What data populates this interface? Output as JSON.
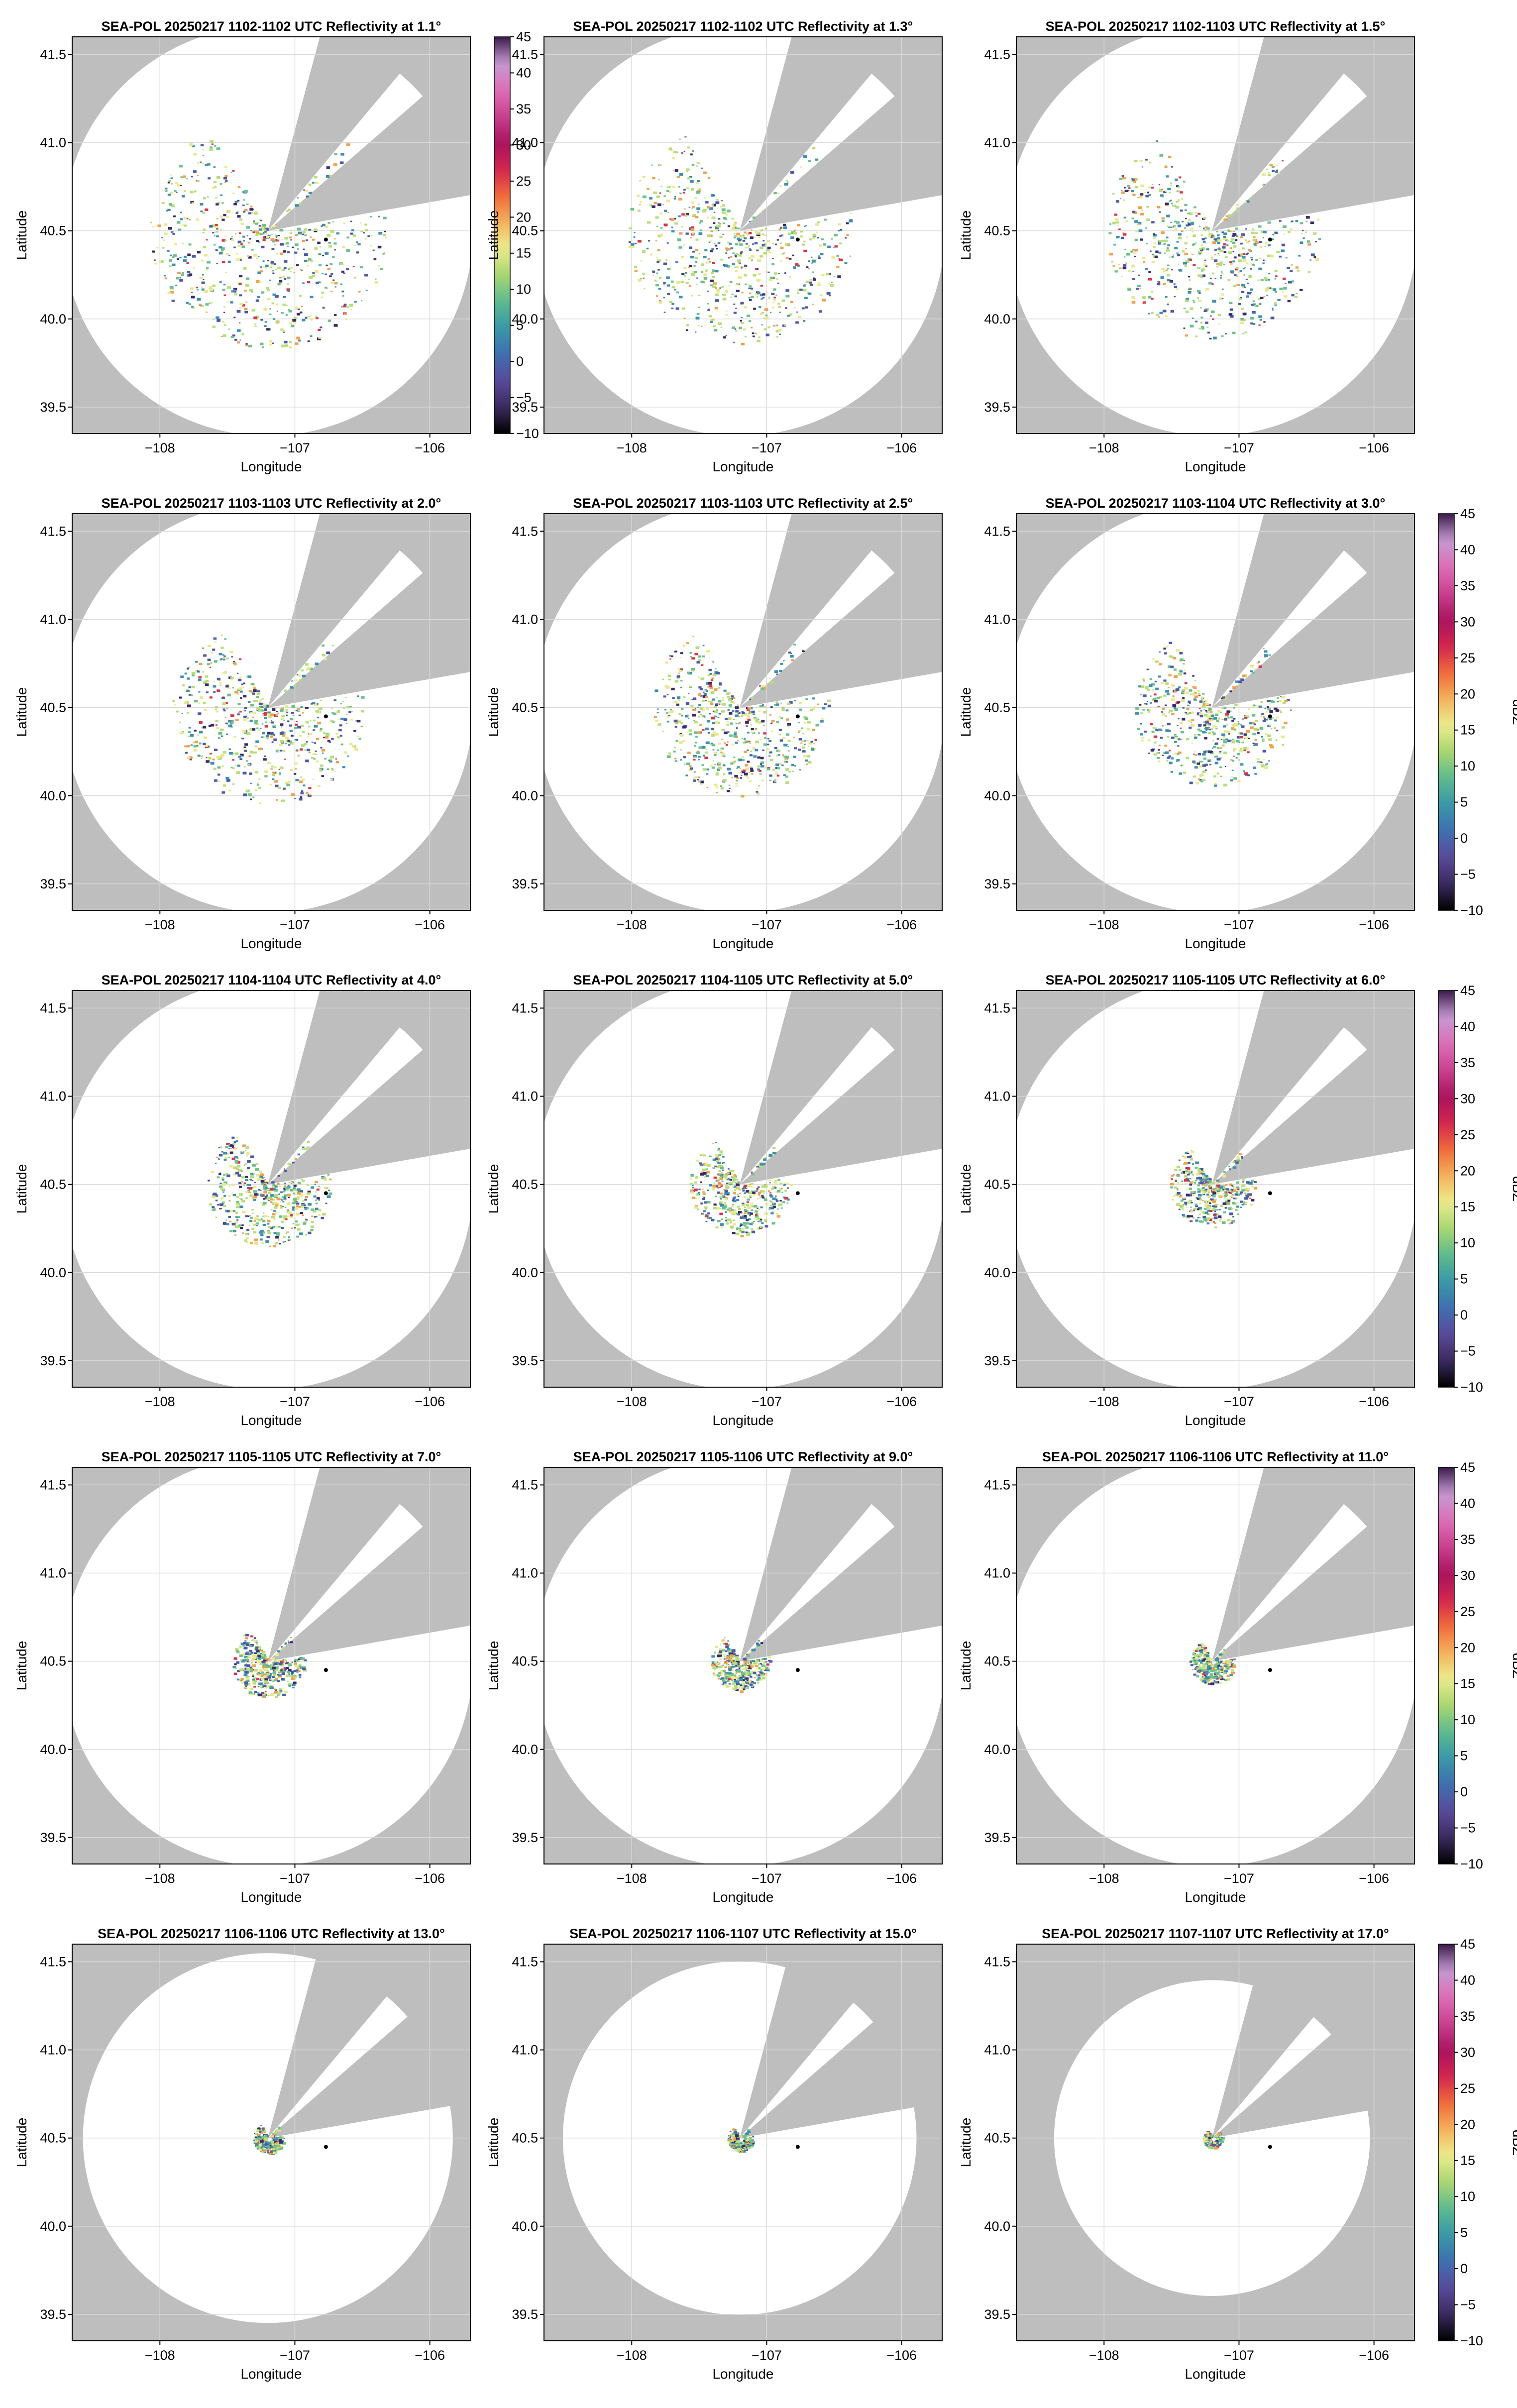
{
  "figure": {
    "colorbar_label": "dBZ",
    "colorbar_ticks": [
      -10,
      -5,
      0,
      5,
      10,
      15,
      20,
      25,
      30,
      35,
      40,
      45
    ],
    "colormap": [
      "#000000",
      "#3b2a5e",
      "#5a4a9a",
      "#3f6fb0",
      "#3a98a8",
      "#5dba8e",
      "#a9d672",
      "#ecec8f",
      "#f4b15a",
      "#ef6a3c",
      "#d2254f",
      "#a8135f",
      "#c9418f",
      "#dd6fb7",
      "#c59ad2",
      "#3a1a4a"
    ]
  },
  "chart_data": [
    {
      "type": "heatmap",
      "title": "SEA-POL 20250217 1102-1102 UTC Reflectivity at 1.1°",
      "elevation_deg": 1.1,
      "xlabel": "Longitude",
      "ylabel": "Latitude",
      "xlim": [
        -108.65,
        -105.7
      ],
      "ylim": [
        39.35,
        41.6
      ],
      "xticks": [
        -108,
        -107,
        -106
      ],
      "yticks": [
        39.5,
        40.0,
        40.5,
        41.0,
        41.5
      ],
      "range_deg_lon": 1.52,
      "echo_extent": 1.05,
      "colorbar": true
    },
    {
      "type": "heatmap",
      "title": "SEA-POL 20250217 1102-1102 UTC Reflectivity at 1.3°",
      "elevation_deg": 1.3,
      "xlabel": "Longitude",
      "ylabel": "Latitude",
      "xlim": [
        -108.65,
        -105.7
      ],
      "ylim": [
        39.35,
        41.6
      ],
      "xticks": [
        -108,
        -107,
        -106
      ],
      "yticks": [
        39.5,
        40.0,
        40.5,
        41.0,
        41.5
      ],
      "range_deg_lon": 1.52,
      "echo_extent": 1.0,
      "colorbar": false
    },
    {
      "type": "heatmap",
      "title": "SEA-POL 20250217 1102-1103 UTC Reflectivity at 1.5°",
      "elevation_deg": 1.5,
      "xlabel": "Longitude",
      "ylabel": "Latitude",
      "xlim": [
        -108.65,
        -105.7
      ],
      "ylim": [
        39.35,
        41.6
      ],
      "xticks": [
        -108,
        -107,
        -106
      ],
      "yticks": [
        39.5,
        40.0,
        40.5,
        41.0,
        41.5
      ],
      "range_deg_lon": 1.52,
      "echo_extent": 0.95,
      "colorbar": false
    },
    {
      "type": "heatmap",
      "title": "SEA-POL 20250217 1103-1103 UTC Reflectivity at 2.0°",
      "elevation_deg": 2.0,
      "xlabel": "Longitude",
      "ylabel": "Latitude",
      "xlim": [
        -108.65,
        -105.7
      ],
      "ylim": [
        39.35,
        41.6
      ],
      "xticks": [
        -108,
        -107,
        -106
      ],
      "yticks": [
        39.5,
        40.0,
        40.5,
        41.0,
        41.5
      ],
      "range_deg_lon": 1.52,
      "echo_extent": 0.85,
      "colorbar": false
    },
    {
      "type": "heatmap",
      "title": "SEA-POL 20250217 1103-1103 UTC Reflectivity at 2.5°",
      "elevation_deg": 2.5,
      "xlabel": "Longitude",
      "ylabel": "Latitude",
      "xlim": [
        -108.65,
        -105.7
      ],
      "ylim": [
        39.35,
        41.6
      ],
      "xticks": [
        -108,
        -107,
        -106
      ],
      "yticks": [
        39.5,
        40.0,
        40.5,
        41.0,
        41.5
      ],
      "range_deg_lon": 1.52,
      "echo_extent": 0.78,
      "colorbar": false
    },
    {
      "type": "heatmap",
      "title": "SEA-POL 20250217 1103-1104 UTC Reflectivity at 3.0°",
      "elevation_deg": 3.0,
      "xlabel": "Longitude",
      "ylabel": "Latitude",
      "xlim": [
        -108.65,
        -105.7
      ],
      "ylim": [
        39.35,
        41.6
      ],
      "xticks": [
        -108,
        -107,
        -106
      ],
      "yticks": [
        39.5,
        40.0,
        40.5,
        41.0,
        41.5
      ],
      "range_deg_lon": 1.52,
      "echo_extent": 0.7,
      "colorbar": true
    },
    {
      "type": "heatmap",
      "title": "SEA-POL 20250217 1104-1104 UTC Reflectivity at 4.0°",
      "elevation_deg": 4.0,
      "xlabel": "Longitude",
      "ylabel": "Latitude",
      "xlim": [
        -108.65,
        -105.7
      ],
      "ylim": [
        39.35,
        41.6
      ],
      "xticks": [
        -108,
        -107,
        -106
      ],
      "yticks": [
        39.5,
        40.0,
        40.5,
        41.0,
        41.5
      ],
      "range_deg_lon": 1.52,
      "echo_extent": 0.55,
      "colorbar": false
    },
    {
      "type": "heatmap",
      "title": "SEA-POL 20250217 1104-1105 UTC Reflectivity at 5.0°",
      "elevation_deg": 5.0,
      "xlabel": "Longitude",
      "ylabel": "Latitude",
      "xlim": [
        -108.65,
        -105.7
      ],
      "ylim": [
        39.35,
        41.6
      ],
      "xticks": [
        -108,
        -107,
        -106
      ],
      "yticks": [
        39.5,
        40.0,
        40.5,
        41.0,
        41.5
      ],
      "range_deg_lon": 1.52,
      "echo_extent": 0.45,
      "colorbar": false
    },
    {
      "type": "heatmap",
      "title": "SEA-POL 20250217 1105-1105 UTC Reflectivity at 6.0°",
      "elevation_deg": 6.0,
      "xlabel": "Longitude",
      "ylabel": "Latitude",
      "xlim": [
        -108.65,
        -105.7
      ],
      "ylim": [
        39.35,
        41.6
      ],
      "xticks": [
        -108,
        -107,
        -106
      ],
      "yticks": [
        39.5,
        40.0,
        40.5,
        41.0,
        41.5
      ],
      "range_deg_lon": 1.52,
      "echo_extent": 0.38,
      "colorbar": true
    },
    {
      "type": "heatmap",
      "title": "SEA-POL 20250217 1105-1105 UTC Reflectivity at 7.0°",
      "elevation_deg": 7.0,
      "xlabel": "Longitude",
      "ylabel": "Latitude",
      "xlim": [
        -108.65,
        -105.7
      ],
      "ylim": [
        39.35,
        41.6
      ],
      "xticks": [
        -108,
        -107,
        -106
      ],
      "yticks": [
        39.5,
        40.0,
        40.5,
        41.0,
        41.5
      ],
      "range_deg_lon": 1.52,
      "echo_extent": 0.32,
      "colorbar": false
    },
    {
      "type": "heatmap",
      "title": "SEA-POL 20250217 1105-1106 UTC Reflectivity at 9.0°",
      "elevation_deg": 9.0,
      "xlabel": "Longitude",
      "ylabel": "Latitude",
      "xlim": [
        -108.65,
        -105.7
      ],
      "ylim": [
        39.35,
        41.6
      ],
      "xticks": [
        -108,
        -107,
        -106
      ],
      "yticks": [
        39.5,
        40.0,
        40.5,
        41.0,
        41.5
      ],
      "range_deg_lon": 1.52,
      "echo_extent": 0.26,
      "colorbar": false
    },
    {
      "type": "heatmap",
      "title": "SEA-POL 20250217 1106-1106 UTC Reflectivity at 11.0°",
      "elevation_deg": 11.0,
      "xlabel": "Longitude",
      "ylabel": "Latitude",
      "xlim": [
        -108.65,
        -105.7
      ],
      "ylim": [
        39.35,
        41.6
      ],
      "xticks": [
        -108,
        -107,
        -106
      ],
      "yticks": [
        39.5,
        40.0,
        40.5,
        41.0,
        41.5
      ],
      "range_deg_lon": 1.52,
      "echo_extent": 0.2,
      "colorbar": true
    },
    {
      "type": "heatmap",
      "title": "SEA-POL 20250217 1106-1106 UTC Reflectivity at 13.0°",
      "elevation_deg": 13.0,
      "xlabel": "Longitude",
      "ylabel": "Latitude",
      "xlim": [
        -108.65,
        -105.7
      ],
      "ylim": [
        39.35,
        41.6
      ],
      "xticks": [
        -108,
        -107,
        -106
      ],
      "yticks": [
        39.5,
        40.0,
        40.5,
        41.0,
        41.5
      ],
      "range_deg_lon": 1.37,
      "echo_extent": 0.15,
      "colorbar": false
    },
    {
      "type": "heatmap",
      "title": "SEA-POL 20250217 1106-1107 UTC Reflectivity at 15.0°",
      "elevation_deg": 15.0,
      "xlabel": "Longitude",
      "ylabel": "Latitude",
      "xlim": [
        -108.65,
        -105.7
      ],
      "ylim": [
        39.35,
        41.6
      ],
      "xticks": [
        -108,
        -107,
        -106
      ],
      "yticks": [
        39.5,
        40.0,
        40.5,
        41.0,
        41.5
      ],
      "range_deg_lon": 1.31,
      "echo_extent": 0.13,
      "colorbar": false
    },
    {
      "type": "heatmap",
      "title": "SEA-POL 20250217 1107-1107 UTC Reflectivity at 17.0°",
      "elevation_deg": 17.0,
      "xlabel": "Longitude",
      "ylabel": "Latitude",
      "xlim": [
        -108.65,
        -105.7
      ],
      "ylim": [
        39.35,
        41.6
      ],
      "xticks": [
        -108,
        -107,
        -106
      ],
      "yticks": [
        39.5,
        40.0,
        40.5,
        41.0,
        41.5
      ],
      "range_deg_lon": 1.17,
      "echo_extent": 0.11,
      "colorbar": true
    }
  ],
  "radar": {
    "lon": -107.2,
    "lat": 40.5
  },
  "marker": {
    "lon": -106.77,
    "lat": 40.45
  },
  "blocked_sectors_deg": [
    [
      15,
      40
    ],
    [
      49,
      80
    ]
  ]
}
